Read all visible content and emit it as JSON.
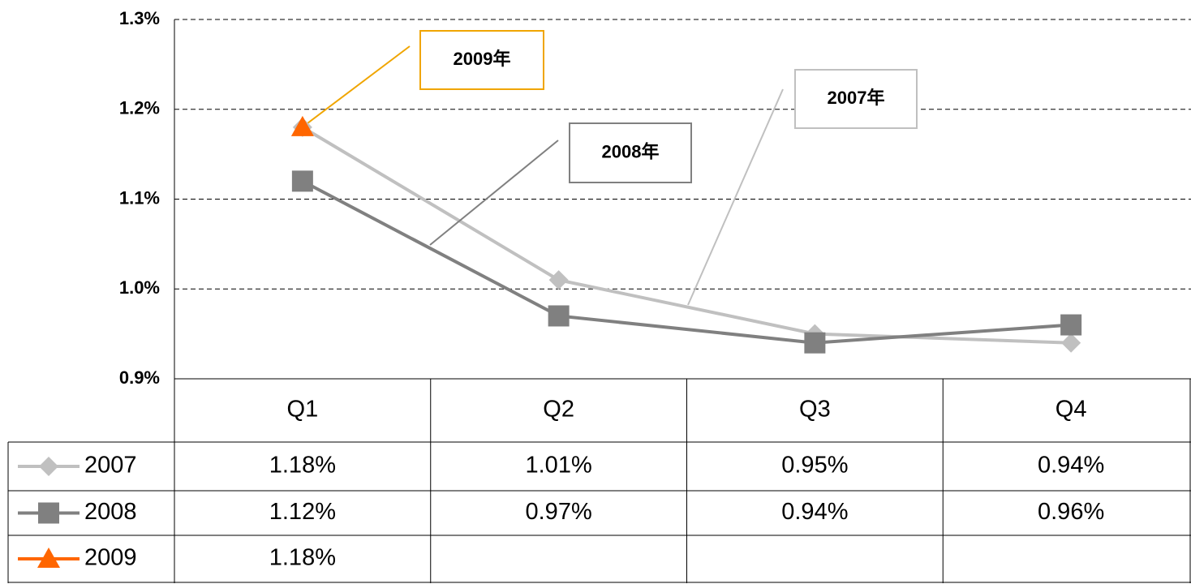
{
  "chart_data": {
    "type": "line",
    "categories": [
      "Q1",
      "Q2",
      "Q3",
      "Q4"
    ],
    "series": [
      {
        "name": "2007",
        "color": "#c0c0c0",
        "marker": "diamond",
        "values": [
          1.18,
          1.01,
          0.95,
          0.94
        ],
        "value_labels": [
          "1.18%",
          "1.01%",
          "0.95%",
          "0.94%"
        ]
      },
      {
        "name": "2008",
        "color": "#808080",
        "marker": "square",
        "values": [
          1.12,
          0.97,
          0.94,
          0.96
        ],
        "value_labels": [
          "1.12%",
          "0.97%",
          "0.94%",
          "0.96%"
        ]
      },
      {
        "name": "2009",
        "color": "#ff6600",
        "marker": "triangle",
        "values": [
          1.18,
          null,
          null,
          null
        ],
        "value_labels": [
          "1.18%",
          null,
          null,
          null
        ]
      }
    ],
    "annotations": [
      "2009年",
      "2008年",
      "2007年"
    ],
    "ylim": [
      0.9,
      1.3
    ],
    "yticks": [
      {
        "value": 0.9,
        "label": "0.9%"
      },
      {
        "value": 1.0,
        "label": "1.0%"
      },
      {
        "value": 1.1,
        "label": "1.1%"
      },
      {
        "value": 1.2,
        "label": "1.2%"
      },
      {
        "value": 1.3,
        "label": "1.3%"
      }
    ],
    "grid": true
  }
}
